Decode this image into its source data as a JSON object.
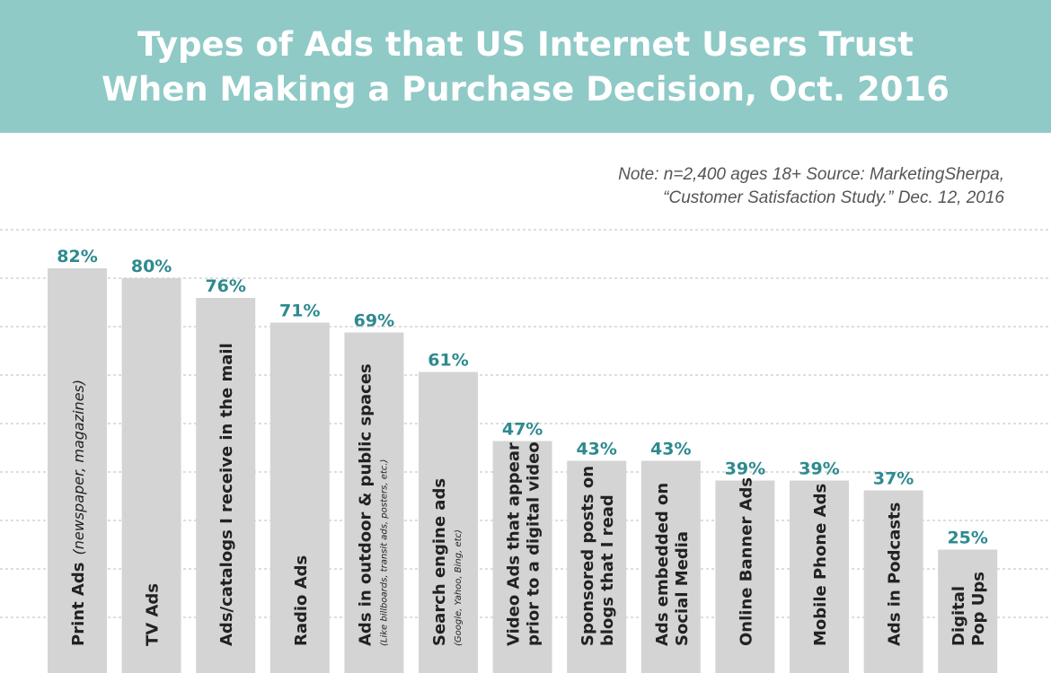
{
  "title": {
    "line1": "Types of Ads that US Internet Users Trust",
    "line2": "When Making a Purchase Decision, Oct. 2016"
  },
  "note": {
    "line1": "Note: n=2,400 ages 18+ Source: MarketingSherpa,",
    "line2": "“Customer Satisfaction Study.” Dec. 12, 2016"
  },
  "colors": {
    "header": "#8fcac7",
    "bar": "#d4d4d4",
    "value_label": "#2e8a8f",
    "category_label": "#222222",
    "gridline": "#bdbdbd"
  },
  "chart_data": {
    "type": "bar",
    "orientation": "vertical",
    "title": "Types of Ads that US Internet Users Trust When Making a Purchase Decision, Oct. 2016",
    "unit": "%",
    "ylim": [
      0,
      90
    ],
    "grid": true,
    "categories": [
      {
        "main": "Print Ads",
        "inline": "(newspaper, magazines)",
        "lines": [
          "Print Ads"
        ],
        "sub": ""
      },
      {
        "main": "TV Ads",
        "inline": "",
        "lines": [
          "TV Ads"
        ],
        "sub": ""
      },
      {
        "main": "Ads/catalogs I receive in the mail",
        "inline": "",
        "lines": [
          "Ads/catalogs I receive in the mail"
        ],
        "sub": ""
      },
      {
        "main": "Radio Ads",
        "inline": "",
        "lines": [
          "Radio Ads"
        ],
        "sub": ""
      },
      {
        "main": "Ads in outdoor & public spaces",
        "inline": "",
        "lines": [
          "Ads in outdoor & public spaces"
        ],
        "sub": "(Like billboards, transit ads, posters, etc.)"
      },
      {
        "main": "Search engine ads",
        "inline": "",
        "lines": [
          "Search engine ads"
        ],
        "sub": "(Google, Yahoo, Bing, etc)"
      },
      {
        "main": "Video Ads that appear prior to a digital video",
        "inline": "",
        "lines": [
          "Video Ads that appear",
          "prior to a digital video"
        ],
        "sub": ""
      },
      {
        "main": "Sponsored posts on blogs that I read",
        "inline": "",
        "lines": [
          "Sponsored posts on",
          "blogs that I read"
        ],
        "sub": ""
      },
      {
        "main": "Ads embedded on Social Media",
        "inline": "",
        "lines": [
          "Ads embedded on",
          "Social Media"
        ],
        "sub": ""
      },
      {
        "main": "Online Banner Ads",
        "inline": "",
        "lines": [
          "Online Banner Ads"
        ],
        "sub": ""
      },
      {
        "main": "Mobile Phone Ads",
        "inline": "",
        "lines": [
          "Mobile Phone Ads"
        ],
        "sub": ""
      },
      {
        "main": "Ads in Podcasts",
        "inline": "",
        "lines": [
          "Ads in Podcasts"
        ],
        "sub": ""
      },
      {
        "main": "Digital Pop Ups",
        "inline": "",
        "lines": [
          "Digital",
          "Pop Ups"
        ],
        "sub": ""
      }
    ],
    "values": [
      82,
      80,
      76,
      71,
      69,
      61,
      47,
      43,
      43,
      39,
      39,
      37,
      25
    ],
    "value_labels": [
      "82%",
      "80%",
      "76%",
      "71%",
      "69%",
      "61%",
      "47%",
      "43%",
      "43%",
      "39%",
      "39%",
      "37%",
      "25%"
    ]
  }
}
